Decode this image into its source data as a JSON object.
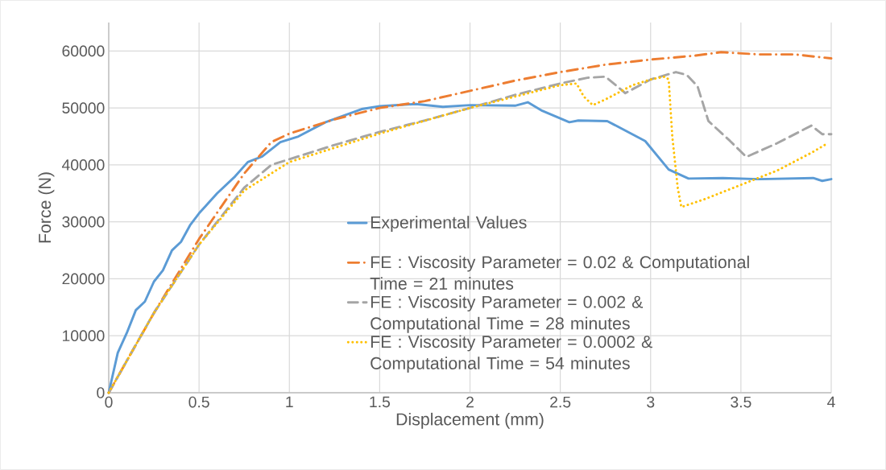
{
  "chart_data": {
    "type": "line",
    "xlabel": "Displacement (mm)",
    "ylabel": "Force (N)",
    "xlim": [
      0,
      4
    ],
    "ylim": [
      0,
      65000
    ],
    "xticks": [
      0,
      0.5,
      1,
      1.5,
      2,
      2.5,
      3,
      3.5,
      4
    ],
    "yticks": [
      0,
      10000,
      20000,
      30000,
      40000,
      50000,
      60000
    ],
    "grid": true,
    "legend": "bottom right",
    "marker": "none",
    "series": [
      {
        "name": "Experimental Values",
        "color": "#5b9bd5",
        "line_style": "solid",
        "x": [
          0,
          0.05,
          0.1,
          0.15,
          0.2,
          0.25,
          0.3,
          0.35,
          0.4,
          0.45,
          0.5,
          0.6,
          0.7,
          0.77,
          0.85,
          0.95,
          1.05,
          1.2,
          1.4,
          1.5,
          1.7,
          1.85,
          2.0,
          2.25,
          2.32,
          2.4,
          2.55,
          2.6,
          2.76,
          2.97,
          3.1,
          3.21,
          3.4,
          3.6,
          3.9,
          3.95,
          4.0
        ],
        "values": [
          0,
          7000,
          10500,
          14500,
          16000,
          19500,
          21500,
          25000,
          26500,
          29400,
          31500,
          35000,
          38000,
          40500,
          41500,
          44000,
          45000,
          47500,
          49800,
          50300,
          50700,
          50200,
          50500,
          50400,
          51000,
          49500,
          47500,
          47800,
          47700,
          44200,
          39200,
          37600,
          37700,
          37500,
          37700,
          37200,
          37500
        ]
      },
      {
        "name": "FE : Viscosity Parameter = 0.02 & Computational Time = 21 minutes",
        "color": "#ed7d31",
        "line_style": "dashdot",
        "x": [
          0,
          0.25,
          0.5,
          0.75,
          0.9,
          1.0,
          1.25,
          1.5,
          1.75,
          2.0,
          2.25,
          2.5,
          2.75,
          3.0,
          3.25,
          3.39,
          3.6,
          3.8,
          4.0
        ],
        "values": [
          0,
          14000,
          27000,
          38500,
          44000,
          45500,
          48000,
          50000,
          51200,
          53000,
          54800,
          56300,
          57600,
          58500,
          59200,
          59800,
          59400,
          59400,
          58700
        ]
      },
      {
        "name": "FE : Viscosity Parameter = 0.002 & Computational Time = 28 minutes",
        "color": "#a5a5a5",
        "line_style": "dashed",
        "x": [
          0,
          0.25,
          0.5,
          0.75,
          0.9,
          1.0,
          1.25,
          1.5,
          1.75,
          2.0,
          2.25,
          2.5,
          2.65,
          2.75,
          2.86,
          3.0,
          3.14,
          3.2,
          3.26,
          3.32,
          3.44,
          3.53,
          3.7,
          3.89,
          3.95,
          4.0
        ],
        "values": [
          0,
          14000,
          26000,
          36000,
          40000,
          41000,
          43500,
          45800,
          47800,
          50000,
          52300,
          54300,
          55300,
          55500,
          52600,
          55000,
          56300,
          55800,
          53800,
          47700,
          44200,
          41400,
          43800,
          46900,
          45400,
          45400
        ]
      },
      {
        "name": "FE : Viscosity Parameter = 0.0002 & Computational Time = 54 minutes",
        "color": "#ffc000",
        "line_style": "dotted",
        "x": [
          0,
          0.25,
          0.5,
          0.75,
          1.0,
          1.5,
          2.0,
          2.25,
          2.5,
          2.59,
          2.63,
          2.68,
          2.75,
          2.9,
          3.0,
          3.08,
          3.1,
          3.12,
          3.15,
          3.17,
          3.3,
          3.5,
          3.7,
          3.9,
          3.98
        ],
        "values": [
          0,
          14000,
          26000,
          35500,
          40500,
          45500,
          50000,
          52000,
          54000,
          54300,
          52000,
          50500,
          51500,
          54000,
          55000,
          55500,
          55000,
          45000,
          36000,
          32600,
          34000,
          36500,
          39000,
          42300,
          43800
        ]
      }
    ]
  }
}
